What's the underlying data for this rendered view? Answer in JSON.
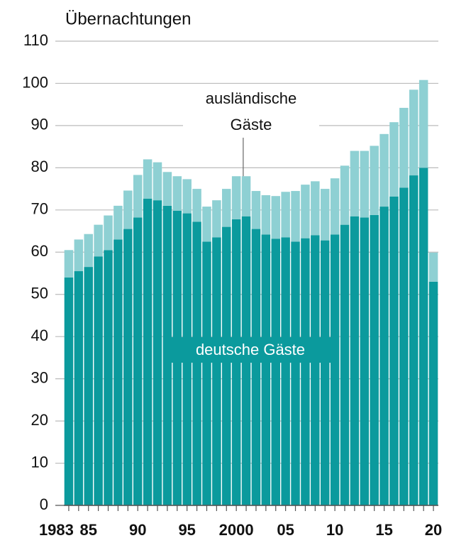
{
  "chart_data": {
    "type": "stacked_bar",
    "title": "Übernachtungen",
    "categories": [
      "1983",
      null,
      "85",
      null,
      null,
      null,
      null,
      "90",
      null,
      null,
      null,
      null,
      "95",
      null,
      null,
      null,
      null,
      "2000",
      null,
      null,
      null,
      null,
      "05",
      null,
      null,
      null,
      null,
      "10",
      null,
      null,
      null,
      null,
      "15",
      null,
      null,
      null,
      null,
      "20"
    ],
    "series": [
      {
        "name": "deutsche Gäste",
        "color": "#0b9a9d",
        "values": [
          54,
          55.5,
          56.5,
          59,
          60.5,
          63,
          65.5,
          68.2,
          72.7,
          72.3,
          71,
          69.8,
          69.2,
          67.2,
          62.5,
          63.5,
          66,
          67.8,
          68.5,
          65.5,
          64.2,
          63.2,
          63.5,
          62.5,
          63.3,
          64,
          62.8,
          64.2,
          66.5,
          68.5,
          68.2,
          68.8,
          70.8,
          73.2,
          75.3,
          78.2,
          80,
          53
        ]
      },
      {
        "name": "ausländische Gäste",
        "color": "#8ed0d3",
        "values": [
          6.5,
          7.5,
          7.8,
          7.5,
          8.2,
          8,
          9.1,
          10.1,
          9.3,
          9,
          8,
          8.2,
          8.1,
          7.8,
          8.3,
          8.8,
          9,
          10.2,
          9.5,
          9,
          9.3,
          10.1,
          10.8,
          12,
          12.7,
          12.8,
          12.2,
          13.3,
          14,
          15.5,
          15.8,
          16.4,
          17.2,
          17.6,
          18.9,
          20.3,
          20.8,
          6.9
        ]
      }
    ],
    "ylim": [
      0,
      110
    ],
    "yticks": [
      0,
      10,
      20,
      30,
      40,
      50,
      60,
      70,
      80,
      90,
      100,
      110
    ],
    "grid": true
  }
}
